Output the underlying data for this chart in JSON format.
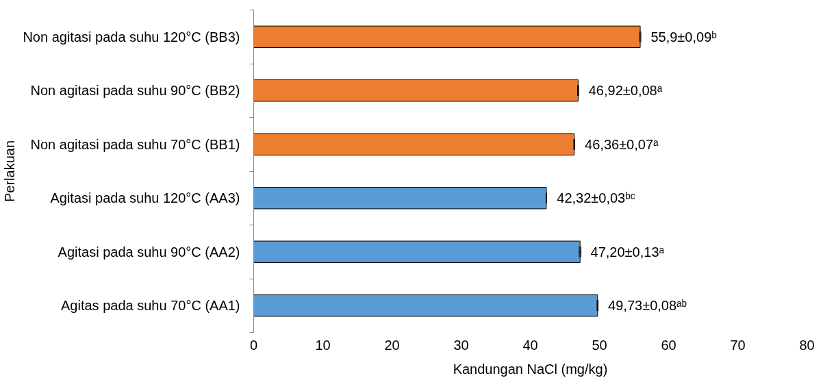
{
  "chart_data": {
    "type": "bar",
    "orientation": "horizontal",
    "xlabel": "Kandungan NaCl (mg/kg)",
    "ylabel": "Perlakuan",
    "categories": [
      "Non agitasi pada suhu 120°C (BB3)",
      "Non agitasi pada suhu 90°C (BB2)",
      "Non agitasi pada suhu 70°C (BB1)",
      "Agitasi pada suhu 120°C (AA3)",
      "Agitasi pada suhu 90°C (AA2)",
      "Agitas pada suhu 70°C (AA1)"
    ],
    "values": [
      55.9,
      46.92,
      46.36,
      42.32,
      47.2,
      49.73
    ],
    "errors": [
      0.09,
      0.08,
      0.07,
      0.03,
      0.13,
      0.08
    ],
    "colors": [
      "#ed7d31",
      "#ed7d31",
      "#ed7d31",
      "#5b9bd5",
      "#5b9bd5",
      "#5b9bd5"
    ],
    "value_labels": [
      "55,9±0,09ᵇ",
      "46,92±0,08ᵃ",
      "46,36±0,07ᵃ",
      "42,32±0,03ᵇᶜ",
      "47,20±0,13ᵃ",
      "49,73±0,08ᵃᵇ"
    ],
    "xlim": [
      0,
      80
    ],
    "xticks": [
      0,
      10,
      20,
      30,
      40,
      50,
      60,
      70,
      80
    ],
    "grid": false
  }
}
